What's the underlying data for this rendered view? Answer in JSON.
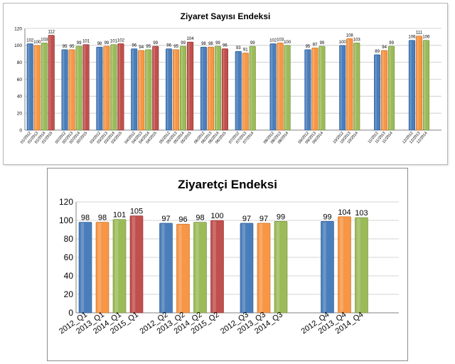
{
  "charts": [
    {
      "type": "bar",
      "title": "Ziyaret Sayısı Endeksi",
      "ylim": [
        0,
        120
      ],
      "yticks": [
        0,
        20,
        40,
        60,
        80,
        100,
        120
      ],
      "grid": true,
      "groups": [
        {
          "labels": [
            "01/2012",
            "01/2013",
            "01/2014",
            "01/2015"
          ],
          "values": [
            102,
            100,
            103,
            112
          ]
        },
        {
          "labels": [
            "02/2012",
            "02/2013",
            "02/2014",
            "02/2015"
          ],
          "values": [
            95,
            95,
            99,
            101
          ]
        },
        {
          "labels": [
            "03/2012",
            "03/2013",
            "03/2014",
            "03/2015"
          ],
          "values": [
            98,
            99,
            101,
            102
          ]
        },
        {
          "labels": [
            "04/2012",
            "04/2013",
            "04/2014",
            "04/2015"
          ],
          "values": [
            96,
            94,
            95,
            99
          ]
        },
        {
          "labels": [
            "05/2012",
            "05/2013",
            "05/2014",
            "05/2015"
          ],
          "values": [
            96,
            95,
            99,
            104
          ]
        },
        {
          "labels": [
            "06/2012",
            "06/2013",
            "06/2014",
            "06/2015"
          ],
          "values": [
            98,
            98,
            99,
            96
          ]
        },
        {
          "labels": [
            "07/2012",
            "07/2013",
            "07/2014"
          ],
          "values": [
            93,
            91,
            99
          ]
        },
        {
          "labels": [
            "08/2012",
            "08/2013",
            "08/2014"
          ],
          "values": [
            102,
            103,
            100
          ]
        },
        {
          "labels": [
            "09/2012",
            "09/2013",
            "09/2014"
          ],
          "values": [
            95,
            97,
            99
          ]
        },
        {
          "labels": [
            "10/2012",
            "10/2013",
            "10/2014"
          ],
          "values": [
            100,
            108,
            103
          ]
        },
        {
          "labels": [
            "11/2012",
            "11/2013",
            "11/2014"
          ],
          "values": [
            89,
            94,
            99
          ]
        },
        {
          "labels": [
            "12/2012",
            "12/2013",
            "12/2014"
          ],
          "values": [
            106,
            111,
            106
          ]
        }
      ]
    },
    {
      "type": "bar",
      "title": "Ziyaretçi Endeksi",
      "ylim": [
        0,
        120
      ],
      "yticks": [
        0,
        20,
        40,
        60,
        80,
        100,
        120
      ],
      "grid": true,
      "groups": [
        {
          "labels": [
            "2012_Q1",
            "2013_Q1",
            "2014_Q1",
            "2015_Q1"
          ],
          "values": [
            98,
            98,
            101,
            105
          ]
        },
        {
          "labels": [
            "2012_Q2",
            "2013_Q2",
            "2014_Q2",
            "2015_Q2"
          ],
          "values": [
            97,
            96,
            98,
            100
          ]
        },
        {
          "labels": [
            "2012_Q3",
            "2013_Q3",
            "2014_Q3"
          ],
          "values": [
            97,
            97,
            99
          ]
        },
        {
          "labels": [
            "2012_Q4",
            "2013_Q4",
            "2014_Q4"
          ],
          "values": [
            99,
            104,
            103
          ]
        }
      ]
    }
  ],
  "colors": {
    "series": [
      "#4a7ebb",
      "#f79646",
      "#9bbb59",
      "#c0504d"
    ],
    "series_dark": [
      "#2c5a94",
      "#c46a1c",
      "#6f8c34",
      "#8c2c2a"
    ],
    "grid": "#c8c8c8",
    "axis": "#808080"
  }
}
